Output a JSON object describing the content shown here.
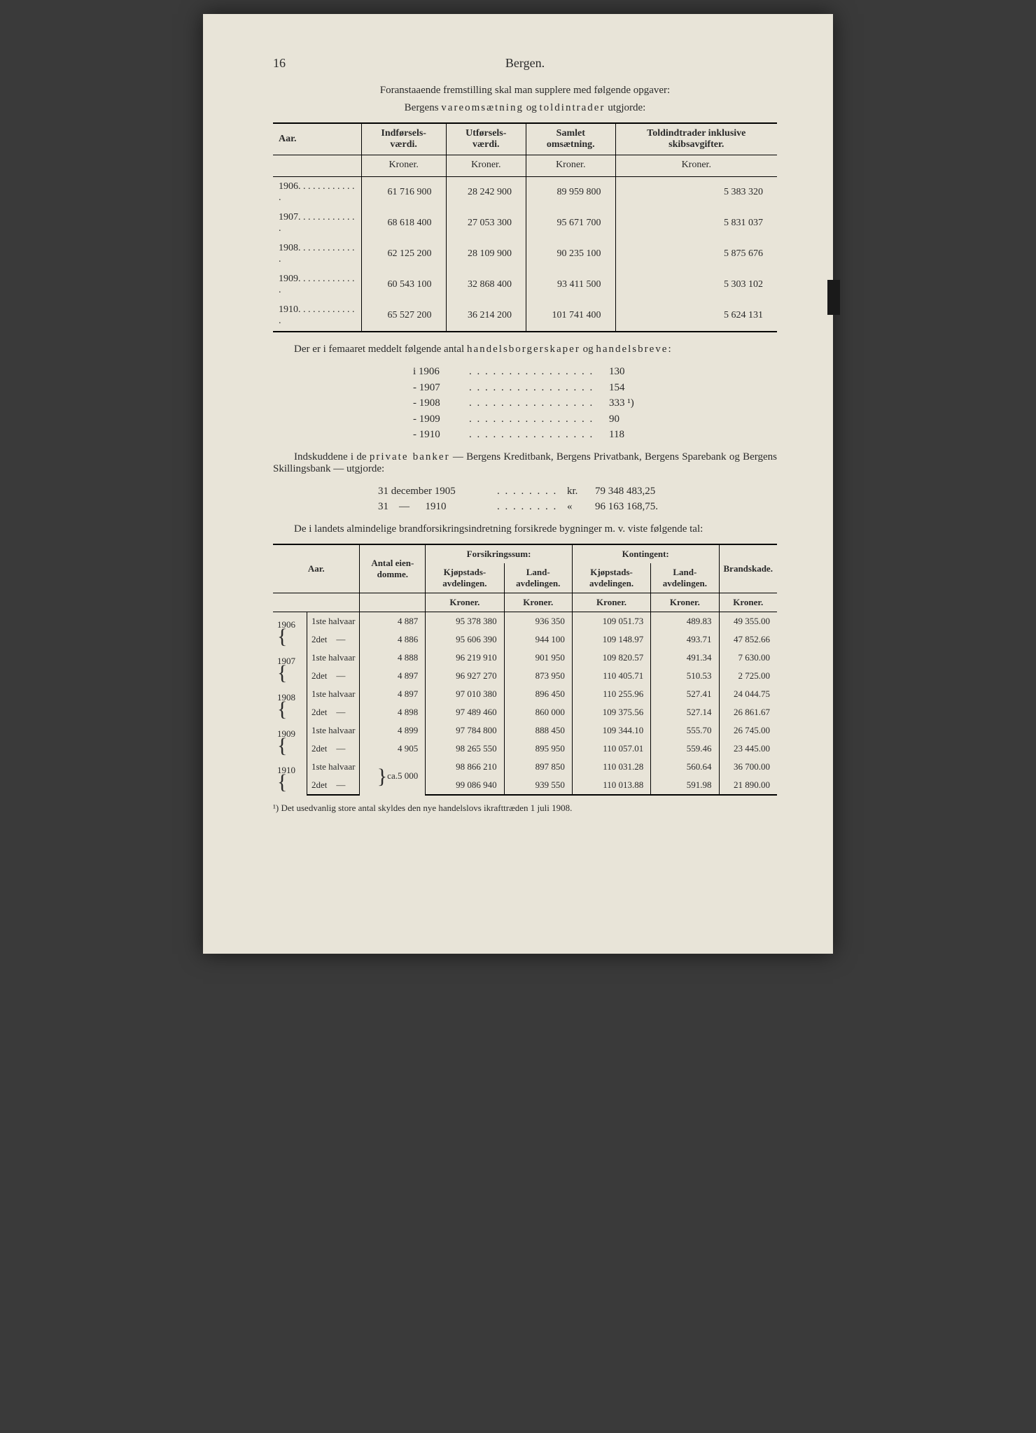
{
  "page_number": "16",
  "header": "Bergen.",
  "intro_line1": "Foranstaaende fremstilling skal man supplere med følgende opgaver:",
  "intro_line2_pre": "Bergens ",
  "intro_line2_spaced1": "vareomsætning",
  "intro_line2_mid": " og ",
  "intro_line2_spaced2": "toldintrader",
  "intro_line2_post": " utgjorde:",
  "table1": {
    "headers": [
      "Aar.",
      "Indførsels-\nværdi.",
      "Utførsels-\nværdi.",
      "Samlet\nomsætning.",
      "Toldindtrader\ninklusive\nskibsavgifter."
    ],
    "unit": "Kroner.",
    "rows": [
      {
        "year": "1906",
        "c1": "61 716 900",
        "c2": "28 242 900",
        "c3": "89 959 800",
        "c4": "5 383 320"
      },
      {
        "year": "1907",
        "c1": "68 618 400",
        "c2": "27 053 300",
        "c3": "95 671 700",
        "c4": "5 831 037"
      },
      {
        "year": "1908",
        "c1": "62 125 200",
        "c2": "28 109 900",
        "c3": "90 235 100",
        "c4": "5 875 676"
      },
      {
        "year": "1909",
        "c1": "60 543 100",
        "c2": "32 868 400",
        "c3": "93 411 500",
        "c4": "5 303 102"
      },
      {
        "year": "1910",
        "c1": "65 527 200",
        "c2": "36 214 200",
        "c3": "101 741 400",
        "c4": "5 624 131"
      }
    ]
  },
  "para1_pre": "Der er i femaaret meddelt følgende antal ",
  "para1_spaced": "handelsborgerskaper",
  "para1_mid": " og ",
  "para1_spaced2": "handelsbreve",
  "para1_post": ":",
  "year_list": [
    {
      "label": "i 1906",
      "val": "130"
    },
    {
      "label": "- 1907",
      "val": "154"
    },
    {
      "label": "- 1908",
      "val": "333 ¹)"
    },
    {
      "label": "- 1909",
      "val": " 90"
    },
    {
      "label": "- 1910",
      "val": "118"
    }
  ],
  "para2_pre": "Indskuddene i de ",
  "para2_spaced": "private banker",
  "para2_post": " — Bergens Kreditbank, Bergens Privatbank, Bergens Sparebank og Bergens Skillingsbank — utgjorde:",
  "date_list": [
    {
      "label": "31 december 1905",
      "unit": "kr.",
      "val": "79 348 483,25"
    },
    {
      "label": "31    —      1910",
      "unit": "«",
      "val": "96 163 168,75."
    }
  ],
  "para3": "De i landets almindelige brandforsikringsindretning forsikrede bygninger m. v. viste følgende tal:",
  "table2": {
    "h_year": "Aar.",
    "h_antal": "Antal\neien-\ndomme.",
    "h_forsik": "Forsikringssum:",
    "h_konti": "Kontingent:",
    "h_brand": "Brandskade.",
    "h_kj": "Kjøpstads-\navdelingen.",
    "h_land": "Land-\navdelingen.",
    "unit": "Kroner.",
    "rows": [
      {
        "year": "1906",
        "half": "1ste halvaar",
        "antal": "4 887",
        "f1": "95 378 380",
        "f2": "936 350",
        "k1": "109 051.73",
        "k2": "489.83",
        "b": "49 355.00"
      },
      {
        "year": "",
        "half": "2det    —",
        "antal": "4 886",
        "f1": "95 606 390",
        "f2": "944 100",
        "k1": "109 148.97",
        "k2": "493.71",
        "b": "47 852.66"
      },
      {
        "year": "1907",
        "half": "1ste halvaar",
        "antal": "4 888",
        "f1": "96 219 910",
        "f2": "901 950",
        "k1": "109 820.57",
        "k2": "491.34",
        "b": "7 630.00"
      },
      {
        "year": "",
        "half": "2det    —",
        "antal": "4 897",
        "f1": "96 927 270",
        "f2": "873 950",
        "k1": "110 405.71",
        "k2": "510.53",
        "b": "2 725.00"
      },
      {
        "year": "1908",
        "half": "1ste halvaar",
        "antal": "4 897",
        "f1": "97 010 380",
        "f2": "896 450",
        "k1": "110 255.96",
        "k2": "527.41",
        "b": "24 044.75"
      },
      {
        "year": "",
        "half": "2det    —",
        "antal": "4 898",
        "f1": "97 489 460",
        "f2": "860 000",
        "k1": "109 375.56",
        "k2": "527.14",
        "b": "26 861.67"
      },
      {
        "year": "1909",
        "half": "1ste halvaar",
        "antal": "4 899",
        "f1": "97 784 800",
        "f2": "888 450",
        "k1": "109 344.10",
        "k2": "555.70",
        "b": "26 745.00"
      },
      {
        "year": "",
        "half": "2det    —",
        "antal": "4 905",
        "f1": "98 265 550",
        "f2": "895 950",
        "k1": "110 057.01",
        "k2": "559.46",
        "b": "23 445.00"
      },
      {
        "year": "1910",
        "half": "1ste halvaar",
        "antal": "ca.5 000",
        "f1": "98 866 210",
        "f2": "897 850",
        "k1": "110 031.28",
        "k2": "560.64",
        "b": "36 700.00"
      },
      {
        "year": "",
        "half": "2det    —",
        "antal": "",
        "f1": "99 086 940",
        "f2": "939 550",
        "k1": "110 013.88",
        "k2": "591.98",
        "b": "21 890.00"
      }
    ]
  },
  "footnote": "¹) Det usedvanlig store antal skyldes den nye handelslovs ikrafttræden 1 juli 1908."
}
